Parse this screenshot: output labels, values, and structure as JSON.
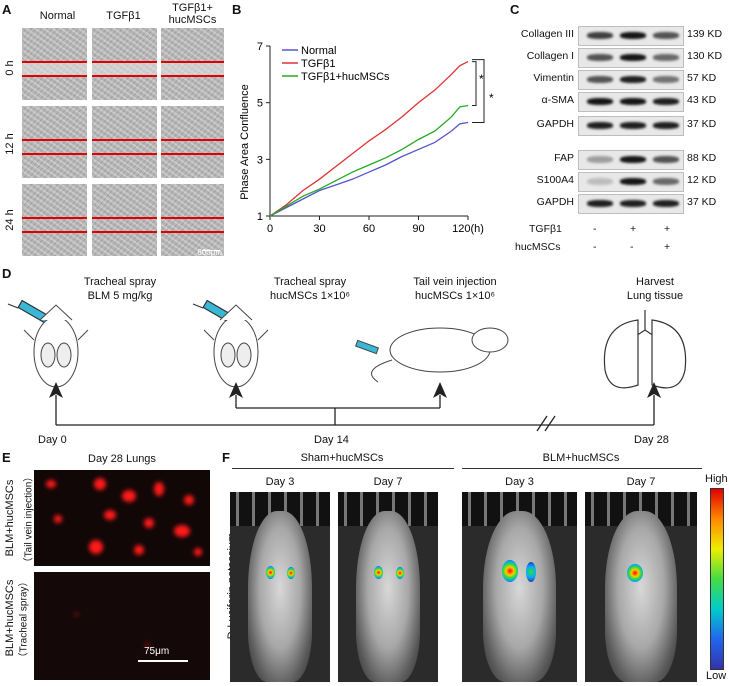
{
  "panelA": {
    "label": "A",
    "cols": [
      "Normal",
      "TGFβ1",
      "TGFβ1+\nhucMSCs"
    ],
    "col3_line1": "TGFβ1+",
    "col3_line2": "hucMSCs",
    "rows": [
      "0 h",
      "12 h",
      "24 h"
    ],
    "scale": "800μm"
  },
  "panelB": {
    "label": "B",
    "star1": "*",
    "star2": "*"
  },
  "chart_data": {
    "type": "line",
    "ylabel": "Phase Area Confluence",
    "x_unit": "(h)",
    "xlim": [
      0,
      120
    ],
    "ylim": [
      1,
      7
    ],
    "xticks": [
      0,
      30,
      60,
      90,
      120
    ],
    "yticks": [
      1,
      3,
      5,
      7
    ],
    "x": [
      0,
      10,
      20,
      30,
      40,
      50,
      60,
      70,
      80,
      90,
      100,
      110,
      115,
      120
    ],
    "series": [
      {
        "name": "Normal",
        "color": "#5555cc",
        "values": [
          1.0,
          1.3,
          1.6,
          1.9,
          2.1,
          2.3,
          2.55,
          2.8,
          3.1,
          3.35,
          3.6,
          4.0,
          4.25,
          4.3
        ]
      },
      {
        "name": "TGFβ1",
        "color": "#dd3333",
        "values": [
          1.0,
          1.4,
          1.9,
          2.3,
          2.75,
          3.2,
          3.65,
          4.05,
          4.5,
          5.0,
          5.45,
          6.0,
          6.3,
          6.45
        ]
      },
      {
        "name": "TGFβ1+hucMSCs",
        "color": "#22aa22",
        "values": [
          1.0,
          1.35,
          1.7,
          1.95,
          2.25,
          2.55,
          2.8,
          3.05,
          3.35,
          3.7,
          4.0,
          4.5,
          4.85,
          4.9
        ]
      }
    ]
  },
  "panelC": {
    "label": "C",
    "blots": [
      {
        "name": "Collagen III",
        "kd": "139 KD"
      },
      {
        "name": "Collagen I",
        "kd": "130 KD"
      },
      {
        "name": "Vimentin",
        "kd": "57 KD"
      },
      {
        "name": "α-SMA",
        "kd": "43 KD"
      },
      {
        "name": "GAPDH",
        "kd": "37 KD"
      },
      {
        "name": "FAP",
        "kd": "88 KD"
      },
      {
        "name": "S100A4",
        "kd": "12 KD"
      },
      {
        "name": "GAPDH",
        "kd": "37 KD"
      }
    ],
    "treat_rows": [
      {
        "name": "TGFβ1",
        "signs": [
          "-",
          "+",
          "+"
        ]
      },
      {
        "name": "hucMSCs",
        "signs": [
          "-",
          "-",
          "+"
        ]
      }
    ]
  },
  "panelD": {
    "label": "D",
    "step1_line1": "Tracheal spray",
    "step1_line2": "BLM 5 mg/kg",
    "step2_line1": "Tracheal spray",
    "step2_line2": "hucMSCs 1×10⁶",
    "step3_line1": "Tail vein injection",
    "step3_line2": "hucMSCs 1×10⁶",
    "step4_line1": "Harvest",
    "step4_line2": "Lung tissue",
    "day0": "Day 0",
    "day14": "Day 14",
    "day28": "Day 28"
  },
  "panelE": {
    "label": "E",
    "title": "Day 28 Lungs",
    "row1_line1": "BLM+hucMSCs",
    "row1_line2": "（Tail vein injection）",
    "row2_line1": "BLM+hucMSCs",
    "row2_line2": "（Tracheal spray）",
    "scale": "75μm"
  },
  "panelF": {
    "label": "F",
    "group1": "Sham+hucMSCs",
    "group2": "BLM+hucMSCs",
    "days": [
      "Day 3",
      "Day 7",
      "Day 3",
      "Day 7"
    ],
    "side_label": "D-Luciferin potassium",
    "high": "High",
    "low": "Low"
  }
}
